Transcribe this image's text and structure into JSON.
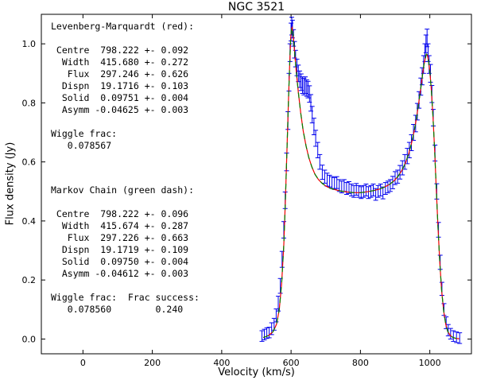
{
  "chart_data": {
    "type": "line",
    "title": "NGC 3521",
    "xlabel": "Velocity (km/s)",
    "ylabel": "Flux density (Jy)",
    "xlim": [
      -120,
      1120
    ],
    "ylim": [
      -0.05,
      1.1
    ],
    "xticks": [
      0,
      200,
      400,
      600,
      800,
      1000
    ],
    "yticks": [
      0.0,
      0.2,
      0.4,
      0.6,
      0.8,
      1.0
    ],
    "grid": false,
    "legend": "none",
    "fit_parameters": {
      "levenberg_marquardt": {
        "label": "Levenberg-Marquardt (red)",
        "centre": [
          798.222,
          0.092
        ],
        "width": [
          415.68,
          0.272
        ],
        "flux": [
          297.246,
          0.626
        ],
        "dispn": [
          19.1716,
          0.103
        ],
        "solid": [
          0.09751,
          0.004
        ],
        "asymm": [
          -0.04625,
          0.003
        ],
        "wiggle_frac": 0.078567
      },
      "markov_chain": {
        "label": "Markov Chain (green dash)",
        "centre": [
          798.222,
          0.096
        ],
        "width": [
          415.674,
          0.287
        ],
        "flux": [
          297.226,
          0.663
        ],
        "dispn": [
          19.1719,
          0.109
        ],
        "solid": [
          0.0975,
          0.004
        ],
        "asymm": [
          -0.04612,
          0.003
        ],
        "wiggle_frac": 0.07856,
        "frac_success": 0.24
      }
    },
    "series": [
      {
        "name": "observed-spectrum-errorbars",
        "type": "errorbar",
        "color": "#0000ee",
        "points": [
          [
            516,
            0.01,
            0.018
          ],
          [
            523,
            0.015,
            0.018
          ],
          [
            530,
            0.02,
            0.018
          ],
          [
            537,
            0.022,
            0.018
          ],
          [
            544,
            0.035,
            0.02
          ],
          [
            551,
            0.05,
            0.02
          ],
          [
            557,
            0.08,
            0.022
          ],
          [
            563,
            0.12,
            0.025
          ],
          [
            569,
            0.18,
            0.025
          ],
          [
            574,
            0.27,
            0.027
          ],
          [
            579,
            0.37,
            0.028
          ],
          [
            583,
            0.47,
            0.028
          ],
          [
            587,
            0.6,
            0.03
          ],
          [
            591,
            0.74,
            0.03
          ],
          [
            594,
            0.87,
            0.03
          ],
          [
            597,
            0.97,
            0.03
          ],
          [
            600,
            1.04,
            0.03
          ],
          [
            602,
            1.06,
            0.03
          ],
          [
            604,
            1.05,
            0.03
          ],
          [
            607,
            1.02,
            0.028
          ],
          [
            610,
            0.98,
            0.028
          ],
          [
            613,
            0.95,
            0.028
          ],
          [
            617,
            0.92,
            0.028
          ],
          [
            621,
            0.9,
            0.028
          ],
          [
            625,
            0.88,
            0.028
          ],
          [
            629,
            0.87,
            0.028
          ],
          [
            633,
            0.86,
            0.028
          ],
          [
            637,
            0.855,
            0.028
          ],
          [
            641,
            0.86,
            0.028
          ],
          [
            645,
            0.85,
            0.028
          ],
          [
            649,
            0.845,
            0.028
          ],
          [
            653,
            0.83,
            0.028
          ],
          [
            657,
            0.8,
            0.028
          ],
          [
            661,
            0.76,
            0.028
          ],
          [
            666,
            0.72,
            0.028
          ],
          [
            671,
            0.68,
            0.027
          ],
          [
            677,
            0.64,
            0.026
          ],
          [
            683,
            0.6,
            0.025
          ],
          [
            690,
            0.565,
            0.024
          ],
          [
            697,
            0.55,
            0.022
          ],
          [
            704,
            0.54,
            0.022
          ],
          [
            711,
            0.535,
            0.02
          ],
          [
            718,
            0.53,
            0.02
          ],
          [
            725,
            0.527,
            0.02
          ],
          [
            732,
            0.53,
            0.02
          ],
          [
            739,
            0.52,
            0.02
          ],
          [
            746,
            0.515,
            0.02
          ],
          [
            753,
            0.52,
            0.02
          ],
          [
            760,
            0.51,
            0.02
          ],
          [
            767,
            0.513,
            0.02
          ],
          [
            774,
            0.505,
            0.02
          ],
          [
            781,
            0.5,
            0.02
          ],
          [
            788,
            0.507,
            0.02
          ],
          [
            795,
            0.5,
            0.02
          ],
          [
            802,
            0.496,
            0.02
          ],
          [
            809,
            0.5,
            0.02
          ],
          [
            816,
            0.505,
            0.02
          ],
          [
            823,
            0.496,
            0.02
          ],
          [
            830,
            0.5,
            0.02
          ],
          [
            837,
            0.505,
            0.02
          ],
          [
            844,
            0.49,
            0.02
          ],
          [
            851,
            0.5,
            0.02
          ],
          [
            858,
            0.505,
            0.02
          ],
          [
            865,
            0.495,
            0.02
          ],
          [
            872,
            0.51,
            0.02
          ],
          [
            879,
            0.515,
            0.02
          ],
          [
            886,
            0.52,
            0.02
          ],
          [
            893,
            0.53,
            0.021
          ],
          [
            900,
            0.545,
            0.022
          ],
          [
            907,
            0.55,
            0.022
          ],
          [
            914,
            0.565,
            0.023
          ],
          [
            921,
            0.58,
            0.024
          ],
          [
            928,
            0.6,
            0.025
          ],
          [
            935,
            0.62,
            0.026
          ],
          [
            941,
            0.64,
            0.026
          ],
          [
            947,
            0.665,
            0.027
          ],
          [
            953,
            0.7,
            0.027
          ],
          [
            959,
            0.73,
            0.028
          ],
          [
            964,
            0.77,
            0.028
          ],
          [
            969,
            0.81,
            0.028
          ],
          [
            974,
            0.855,
            0.029
          ],
          [
            978,
            0.89,
            0.029
          ],
          [
            982,
            0.93,
            0.03
          ],
          [
            986,
            0.97,
            0.03
          ],
          [
            989,
            1.0,
            0.03
          ],
          [
            992,
            1.02,
            0.03
          ],
          [
            995,
            0.97,
            0.03
          ],
          [
            998,
            0.93,
            0.03
          ],
          [
            1002,
            0.9,
            0.03
          ],
          [
            1006,
            0.83,
            0.029
          ],
          [
            1010,
            0.75,
            0.028
          ],
          [
            1015,
            0.63,
            0.027
          ],
          [
            1020,
            0.5,
            0.026
          ],
          [
            1025,
            0.37,
            0.025
          ],
          [
            1030,
            0.26,
            0.024
          ],
          [
            1035,
            0.17,
            0.022
          ],
          [
            1041,
            0.1,
            0.02
          ],
          [
            1047,
            0.055,
            0.02
          ],
          [
            1053,
            0.03,
            0.019
          ],
          [
            1060,
            0.018,
            0.018
          ],
          [
            1068,
            0.01,
            0.018
          ],
          [
            1077,
            0.006,
            0.018
          ],
          [
            1086,
            0.003,
            0.018
          ]
        ]
      },
      {
        "name": "levenberg-marquardt-fit",
        "type": "line",
        "style": "solid",
        "color": "#ee0000",
        "points": [
          [
            520,
            0.005
          ],
          [
            535,
            0.012
          ],
          [
            548,
            0.025
          ],
          [
            558,
            0.05
          ],
          [
            566,
            0.1
          ],
          [
            573,
            0.19
          ],
          [
            579,
            0.32
          ],
          [
            584,
            0.48
          ],
          [
            589,
            0.67
          ],
          [
            593,
            0.83
          ],
          [
            596,
            0.93
          ],
          [
            599,
            1.02
          ],
          [
            601,
            1.05
          ],
          [
            603,
            1.055
          ],
          [
            606,
            1.03
          ],
          [
            610,
            0.975
          ],
          [
            615,
            0.905
          ],
          [
            621,
            0.835
          ],
          [
            628,
            0.765
          ],
          [
            635,
            0.705
          ],
          [
            643,
            0.655
          ],
          [
            651,
            0.615
          ],
          [
            660,
            0.583
          ],
          [
            669,
            0.558
          ],
          [
            679,
            0.54
          ],
          [
            690,
            0.527
          ],
          [
            702,
            0.517
          ],
          [
            715,
            0.51
          ],
          [
            730,
            0.505
          ],
          [
            745,
            0.501
          ],
          [
            762,
            0.498
          ],
          [
            780,
            0.496
          ],
          [
            800,
            0.496
          ],
          [
            820,
            0.499
          ],
          [
            838,
            0.503
          ],
          [
            855,
            0.508
          ],
          [
            870,
            0.515
          ],
          [
            884,
            0.524
          ],
          [
            897,
            0.536
          ],
          [
            909,
            0.552
          ],
          [
            920,
            0.572
          ],
          [
            930,
            0.597
          ],
          [
            939,
            0.627
          ],
          [
            947,
            0.662
          ],
          [
            955,
            0.705
          ],
          [
            962,
            0.752
          ],
          [
            968,
            0.8
          ],
          [
            974,
            0.85
          ],
          [
            979,
            0.895
          ],
          [
            983,
            0.928
          ],
          [
            987,
            0.952
          ],
          [
            990,
            0.965
          ],
          [
            993,
            0.962
          ],
          [
            996,
            0.945
          ],
          [
            1000,
            0.908
          ],
          [
            1004,
            0.85
          ],
          [
            1009,
            0.755
          ],
          [
            1014,
            0.635
          ],
          [
            1019,
            0.5
          ],
          [
            1024,
            0.37
          ],
          [
            1029,
            0.255
          ],
          [
            1034,
            0.165
          ],
          [
            1040,
            0.095
          ],
          [
            1046,
            0.05
          ],
          [
            1052,
            0.025
          ],
          [
            1059,
            0.012
          ],
          [
            1067,
            0.005
          ],
          [
            1076,
            0.002
          ],
          [
            1085,
            0.001
          ]
        ]
      },
      {
        "name": "markov-chain-fit",
        "type": "line",
        "style": "dashed",
        "color": "#007f00",
        "points_ref": "levenberg-marquardt-fit"
      }
    ]
  },
  "annotations": {
    "lm_text": "Levenberg-Marquardt (red):\n\n Centre  798.222 +- 0.092\n  Width  415.680 +- 0.272\n   Flux  297.246 +- 0.626\n  Dispn  19.1716 +- 0.103\n  Solid  0.09751 +- 0.004\n  Asymm -0.04625 +- 0.003\n\nWiggle frac:\n   0.078567",
    "mc_text": "Markov Chain (green dash):\n\n Centre  798.222 +- 0.096\n  Width  415.674 +- 0.287\n   Flux  297.226 +- 0.663\n  Dispn  19.1719 +- 0.109\n  Solid  0.09750 +- 0.004\n  Asymm -0.04612 +- 0.003\n\nWiggle frac:  Frac success:\n   0.078560        0.240"
  }
}
